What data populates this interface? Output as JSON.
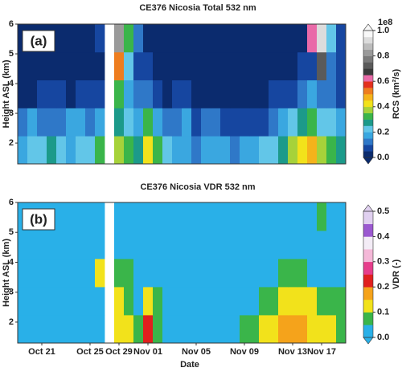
{
  "chart_data": [
    {
      "type": "heatmap",
      "title": "CE376 Nicosia Total 532 nm",
      "panel_label": "(a)",
      "y_label": "Height ASL (km)",
      "ylim": [
        1.3,
        6
      ],
      "yticks": [
        2,
        3,
        4,
        5,
        6
      ],
      "z": [
        [
          0.18,
          0.2,
          0.22,
          0.25,
          0.2,
          0.18,
          0.22,
          0.2,
          0.3,
          null,
          0.35,
          0.3,
          0.25,
          0.4,
          0.3,
          0.2,
          0.18,
          0.15,
          0.12,
          0.15,
          0.18,
          0.15,
          0.12,
          0.15,
          0.18,
          0.2,
          0.22,
          0.28,
          0.35,
          0.4,
          0.45,
          0.35,
          0.3,
          0.25
        ],
        [
          0.12,
          0.15,
          0.12,
          0.1,
          0.12,
          0.15,
          0.18,
          0.12,
          0.15,
          null,
          0.25,
          0.2,
          0.15,
          0.3,
          0.18,
          0.1,
          0.12,
          0.15,
          0.08,
          0.12,
          0.1,
          0.08,
          0.06,
          0.05,
          0.06,
          0.08,
          0.12,
          0.15,
          0.2,
          0.25,
          0.3,
          0.22,
          0.2,
          0.18
        ],
        [
          0.03,
          0.04,
          0.05,
          0.06,
          0.05,
          0.04,
          0.08,
          0.05,
          0.06,
          null,
          0.3,
          0.15,
          0.1,
          0.12,
          0.08,
          0.04,
          0.05,
          0.06,
          0.03,
          0.04,
          0.03,
          0.03,
          0.03,
          0.03,
          0.03,
          0.04,
          0.05,
          0.06,
          0.08,
          0.1,
          0.15,
          0.12,
          0.1,
          0.08
        ],
        [
          0.02,
          0.02,
          0.03,
          0.03,
          0.02,
          0.02,
          0.03,
          0.02,
          0.04,
          null,
          0.5,
          0.2,
          0.08,
          0.06,
          0.04,
          0.02,
          0.02,
          0.03,
          0.02,
          0.02,
          0.02,
          0.02,
          0.02,
          0.02,
          0.02,
          0.02,
          0.03,
          0.03,
          0.04,
          0.05,
          0.08,
          0.7,
          0.1,
          0.05
        ],
        [
          0.02,
          0.02,
          0.02,
          0.03,
          0.02,
          0.02,
          0.03,
          0.02,
          0.05,
          null,
          0.8,
          0.3,
          0.1,
          0.04,
          0.03,
          0.02,
          0.02,
          0.02,
          0.02,
          0.02,
          0.02,
          0.02,
          0.02,
          0.02,
          0.02,
          0.02,
          0.02,
          0.03,
          0.04,
          0.04,
          0.6,
          0.9,
          0.2,
          0.05
        ]
      ],
      "colorbar": {
        "label": "RCS (km²/s)",
        "offset_label": "1e8",
        "levels": [
          0,
          0.05,
          0.1,
          0.15,
          0.2,
          0.25,
          0.3,
          0.35,
          0.4,
          0.45,
          0.5,
          0.55,
          0.6,
          0.65,
          0.7,
          0.75,
          0.8,
          0.85,
          0.9,
          0.95,
          1.0
        ],
        "colors": [
          "#0b2b6e",
          "#1646a0",
          "#2f78c8",
          "#3aa7e0",
          "#62c6e8",
          "#1c9a8a",
          "#3ab54a",
          "#a6d23a",
          "#f2e21b",
          "#f5b31b",
          "#ee7d1f",
          "#e3301e",
          "#e96aa8",
          "#3a3a3a",
          "#5a5a5a",
          "#7a7a7a",
          "#9a9a9a",
          "#bcbcbc",
          "#dcdcdc",
          "#f8f8f8"
        ],
        "ticks": [
          {
            "value": 0,
            "label": "0.0"
          },
          0.2,
          0.4,
          0.6,
          0.8,
          {
            "value": 1,
            "label": "1.0"
          }
        ]
      }
    },
    {
      "type": "heatmap",
      "title": "CE376 Nicosia VDR 532 nm",
      "panel_label": "(b)",
      "y_label": "Height ASL (km)",
      "x_label": "Date",
      "categories": [
        null,
        null,
        "Oct 21",
        null,
        null,
        null,
        null,
        "Oct 25",
        null,
        null,
        "Oct 29",
        null,
        null,
        "Nov 01",
        null,
        null,
        null,
        null,
        "Nov 05",
        null,
        null,
        null,
        null,
        "Nov 09",
        null,
        null,
        null,
        null,
        "Nov 13",
        null,
        null,
        "Nov 17",
        null,
        null
      ],
      "ylim": [
        1.3,
        6
      ],
      "yticks": [
        2,
        3,
        4,
        5,
        6
      ],
      "z": [
        [
          0.02,
          0.03,
          0.02,
          0.02,
          0.03,
          0.02,
          0.04,
          0.03,
          0.04,
          null,
          0.12,
          0.1,
          0.06,
          0.2,
          0.08,
          0.03,
          0.03,
          0.02,
          0.02,
          0.03,
          0.02,
          0.03,
          0.04,
          0.06,
          0.08,
          0.1,
          0.12,
          0.15,
          0.18,
          0.15,
          0.14,
          0.12,
          0.1,
          0.08
        ],
        [
          0.02,
          0.02,
          0.02,
          0.02,
          0.02,
          0.02,
          0.03,
          0.02,
          0.03,
          null,
          0.11,
          0.08,
          0.04,
          0.12,
          0.05,
          0.02,
          0.02,
          0.02,
          0.02,
          0.02,
          0.02,
          0.02,
          0.02,
          0.03,
          0.04,
          0.06,
          0.08,
          0.1,
          0.12,
          0.11,
          0.1,
          0.08,
          0.06,
          0.05
        ],
        [
          0.02,
          0.02,
          0.02,
          0.02,
          0.02,
          0.02,
          0.02,
          0.02,
          0.12,
          null,
          0.08,
          0.05,
          0.03,
          0.04,
          0.03,
          0.02,
          0.02,
          0.02,
          0.02,
          0.02,
          0.02,
          0.02,
          0.02,
          0.02,
          0.02,
          0.03,
          0.04,
          0.05,
          0.06,
          0.05,
          0.04,
          0.03,
          0.03,
          0.02
        ],
        [
          0.02,
          0.02,
          0.02,
          0.02,
          0.02,
          0.02,
          0.02,
          0.02,
          0.02,
          null,
          0.04,
          0.03,
          0.02,
          0.02,
          0.02,
          0.02,
          0.02,
          0.02,
          0.02,
          0.02,
          0.02,
          0.02,
          0.02,
          0.02,
          0.02,
          0.02,
          0.02,
          0.02,
          0.02,
          0.02,
          0.02,
          0.02,
          0.02,
          0.02
        ],
        [
          0.02,
          0.02,
          0.02,
          0.02,
          0.02,
          0.02,
          0.02,
          0.02,
          0.02,
          null,
          0.03,
          0.02,
          0.02,
          0.02,
          0.02,
          0.02,
          0.02,
          0.02,
          0.02,
          0.02,
          0.02,
          0.02,
          0.02,
          0.02,
          0.02,
          0.02,
          0.02,
          0.02,
          0.02,
          0.02,
          0.02,
          0.06,
          0.02,
          0.02
        ]
      ],
      "colorbar": {
        "label": "VDR (-)",
        "levels": [
          0,
          0.05,
          0.1,
          0.15,
          0.2,
          0.25,
          0.3,
          0.35,
          0.4,
          0.45,
          0.5
        ],
        "colors": [
          "#29b0e8",
          "#3ab54a",
          "#f2e21b",
          "#f5a31b",
          "#e0201e",
          "#e63d8b",
          "#f4b8d8",
          "#f3ecf6",
          "#9b59d0",
          "#e0d0f0"
        ],
        "ticks": [
          {
            "value": 0,
            "label": "0.0"
          },
          0.1,
          0.2,
          0.3,
          0.4,
          0.5
        ]
      }
    }
  ]
}
